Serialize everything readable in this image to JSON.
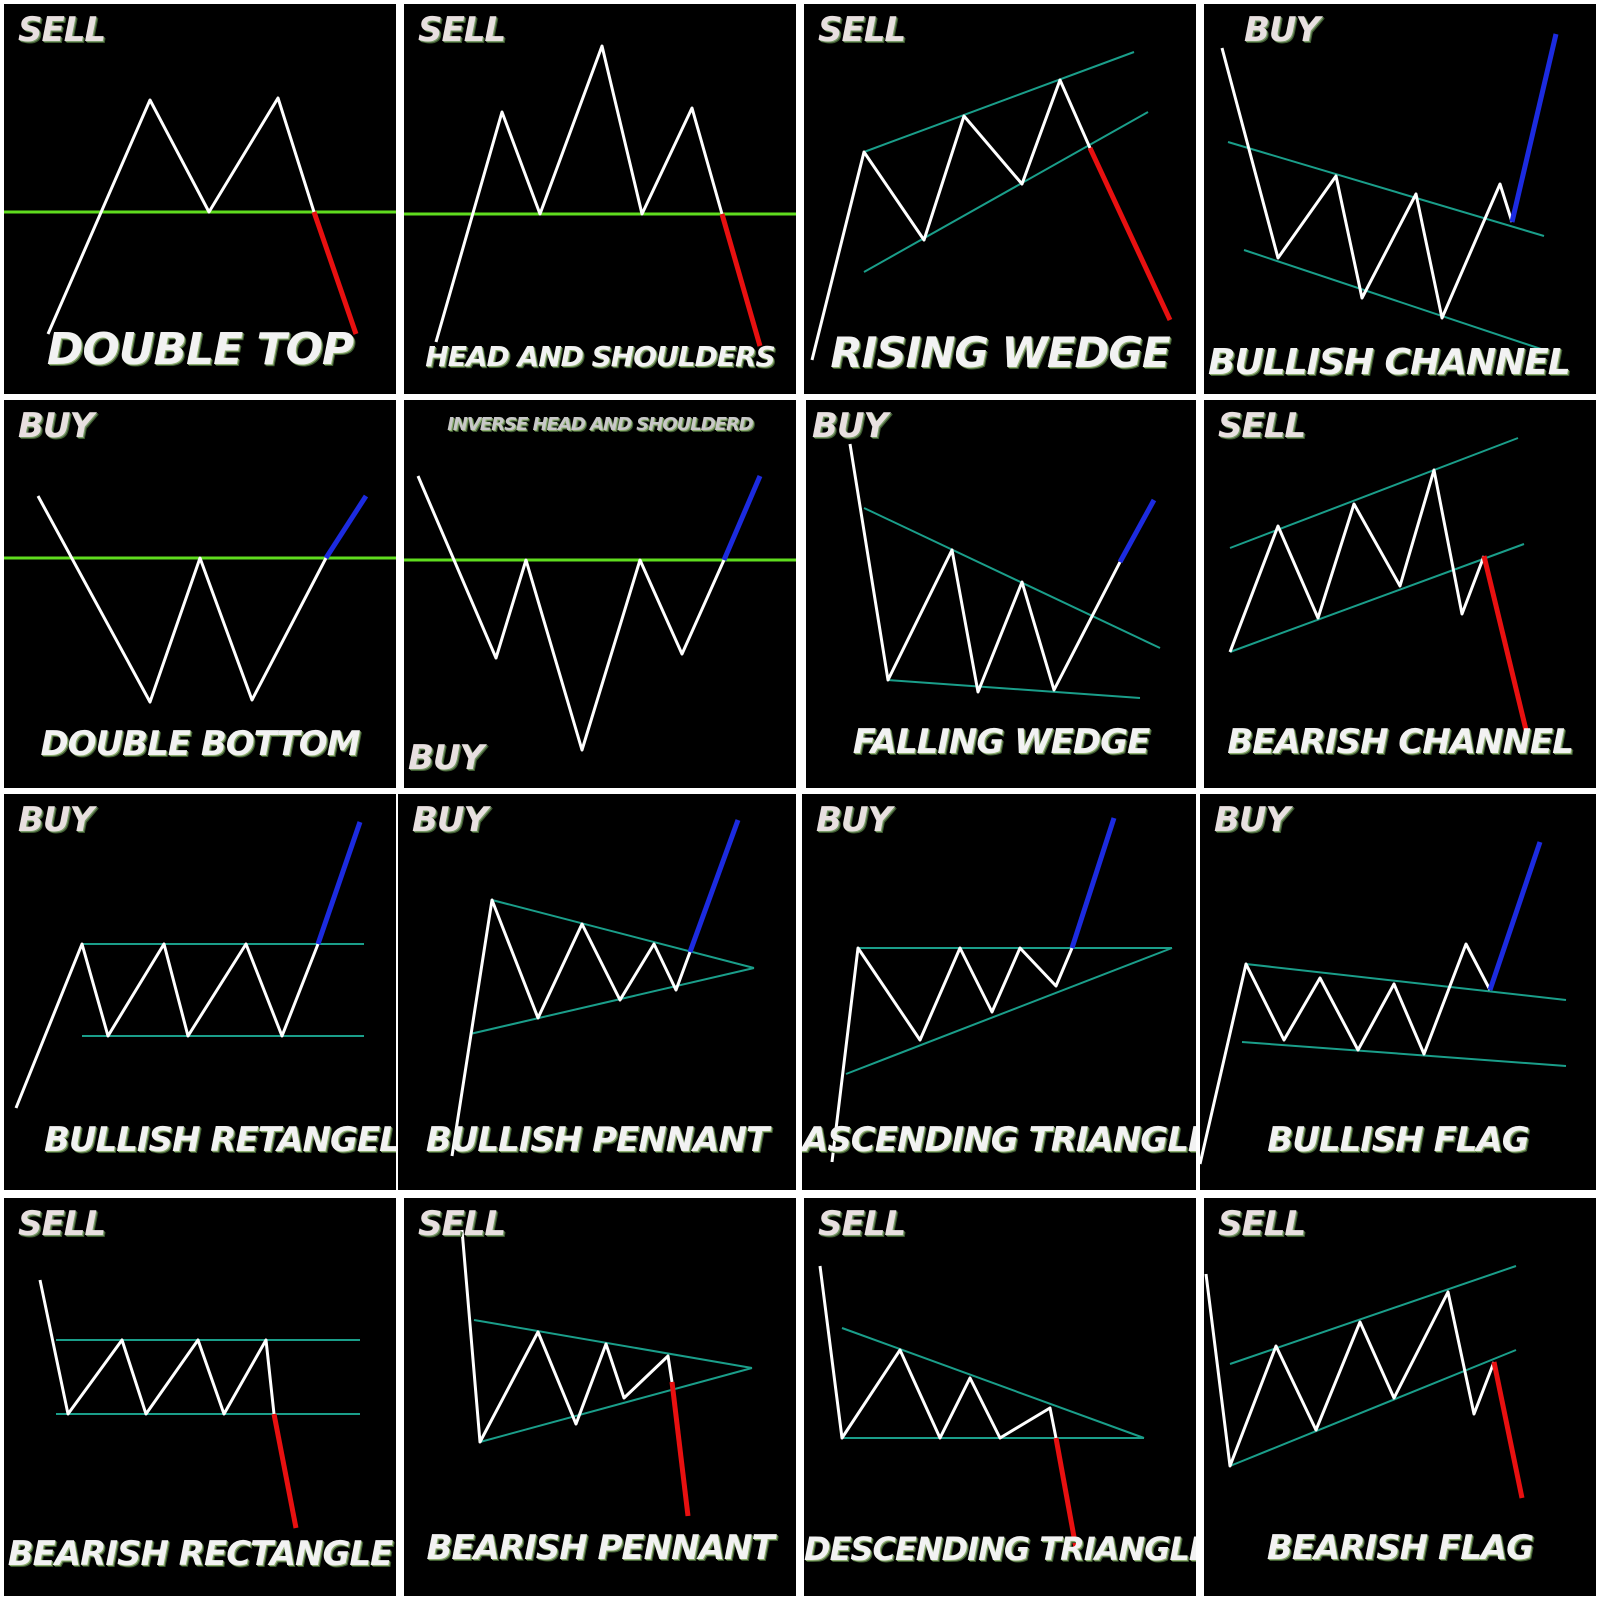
{
  "panels": [
    {
      "id": "double-top",
      "signal": "SELL",
      "title": "DOUBLE TOP"
    },
    {
      "id": "head-and-shoulders",
      "signal": "SELL",
      "title": "HEAD AND SHOULDERS"
    },
    {
      "id": "rising-wedge",
      "signal": "SELL",
      "title": "RISING WEDGE"
    },
    {
      "id": "bullish-channel",
      "signal": "BUY",
      "title": "BULLISH CHANNEL"
    },
    {
      "id": "double-bottom",
      "signal": "BUY",
      "title": "DOUBLE BOTTOM"
    },
    {
      "id": "inverse-head-and-shoulders",
      "signal": "BUY",
      "title": "INVERSE HEAD AND SHOULDERD"
    },
    {
      "id": "falling-wedge",
      "signal": "BUY",
      "title": "FALLING WEDGE"
    },
    {
      "id": "bearish-channel",
      "signal": "SELL",
      "title": "BEARISH CHANNEL"
    },
    {
      "id": "bullish-rectangle",
      "signal": "BUY",
      "title": "BULLISH RETANGEL"
    },
    {
      "id": "bullish-pennant",
      "signal": "BUY",
      "title": "BULLISH PENNANT"
    },
    {
      "id": "ascending-triangle",
      "signal": "BUY",
      "title": "ASCENDING TRIANGLE"
    },
    {
      "id": "bullish-flag",
      "signal": "BUY",
      "title": "BULLISH FLAG"
    },
    {
      "id": "bearish-rectangle",
      "signal": "SELL",
      "title": "BEARISH RECTANGLE"
    },
    {
      "id": "bearish-pennant",
      "signal": "SELL",
      "title": "BEARISH PENNANT"
    },
    {
      "id": "descending-triangle",
      "signal": "SELL",
      "title": "DESCENDING TRIANGLE"
    },
    {
      "id": "bearish-flag",
      "signal": "SELL",
      "title": "BEARISH FLAG"
    }
  ],
  "colors": {
    "price_line": "#ffffff",
    "support_resistance": "#5fdc1e",
    "trendline": "#1a9e8a",
    "bullish_breakout": "#1c2be0",
    "bearish_breakout": "#e81010",
    "panel_background": "#000000"
  }
}
